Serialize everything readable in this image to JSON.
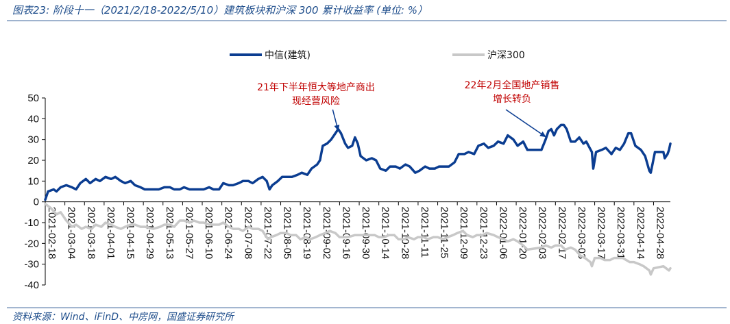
{
  "figure": {
    "title": "图表23:  阶段十一（2021/2/18-2022/5/10）建筑板块和沪深 300 累计收益率 (单位:    %）",
    "source": "资料来源：Wind、iFinD、中房网，国盛证券研究所"
  },
  "chart_data": {
    "type": "line",
    "title": "",
    "xlabel": "",
    "ylabel": "",
    "ylim": [
      -40,
      50
    ],
    "yticks": [
      -40,
      -30,
      -20,
      -10,
      0,
      10,
      20,
      30,
      40,
      50
    ],
    "grid": false,
    "legend_position": "top-center",
    "x_tick_labels": [
      "2021-02-18",
      "2021-03-04",
      "2021-03-18",
      "2021-04-01",
      "2021-04-15",
      "2021-04-29",
      "2021-05-13",
      "2021-05-27",
      "2021-06-10",
      "2021-06-24",
      "2021-07-08",
      "2021-07-22",
      "2021-08-05",
      "2021-08-19",
      "2021-09-02",
      "2021-09-16",
      "2021-09-30",
      "2021-10-14",
      "2021-10-28",
      "2021-11-11",
      "2021-11-25",
      "2021-12-09",
      "2021-12-23",
      "2022-01-06",
      "2022-01-20",
      "2022-02-03",
      "2022-02-17",
      "2022-03-03",
      "2022-03-17",
      "2022-03-31",
      "2022-04-14",
      "2022-04-28"
    ],
    "series": [
      {
        "name": "中信(建筑)",
        "color": "#0b3d91",
        "points": [
          [
            "2021-02-18",
            1
          ],
          [
            "2021-02-20",
            5
          ],
          [
            "2021-02-24",
            6
          ],
          [
            "2021-02-26",
            5
          ],
          [
            "2021-03-01",
            7
          ],
          [
            "2021-03-05",
            8
          ],
          [
            "2021-03-09",
            7
          ],
          [
            "2021-03-12",
            6
          ],
          [
            "2021-03-15",
            9
          ],
          [
            "2021-03-19",
            11
          ],
          [
            "2021-03-22",
            9
          ],
          [
            "2021-03-26",
            11
          ],
          [
            "2021-03-29",
            10
          ],
          [
            "2021-04-02",
            12
          ],
          [
            "2021-04-06",
            11
          ],
          [
            "2021-04-09",
            12
          ],
          [
            "2021-04-13",
            10
          ],
          [
            "2021-04-16",
            9
          ],
          [
            "2021-04-20",
            10
          ],
          [
            "2021-04-23",
            8
          ],
          [
            "2021-04-27",
            7
          ],
          [
            "2021-04-30",
            6
          ],
          [
            "2021-05-06",
            6
          ],
          [
            "2021-05-10",
            6
          ],
          [
            "2021-05-14",
            7
          ],
          [
            "2021-05-18",
            7
          ],
          [
            "2021-05-21",
            6
          ],
          [
            "2021-05-25",
            6
          ],
          [
            "2021-05-28",
            7
          ],
          [
            "2021-06-01",
            6
          ],
          [
            "2021-06-04",
            6
          ],
          [
            "2021-06-08",
            6
          ],
          [
            "2021-06-11",
            6
          ],
          [
            "2021-06-15",
            7
          ],
          [
            "2021-06-18",
            6
          ],
          [
            "2021-06-22",
            6
          ],
          [
            "2021-06-25",
            9
          ],
          [
            "2021-06-29",
            8
          ],
          [
            "2021-07-02",
            8
          ],
          [
            "2021-07-06",
            9
          ],
          [
            "2021-07-09",
            10
          ],
          [
            "2021-07-13",
            10
          ],
          [
            "2021-07-16",
            9
          ],
          [
            "2021-07-20",
            11
          ],
          [
            "2021-07-23",
            12
          ],
          [
            "2021-07-26",
            10
          ],
          [
            "2021-07-28",
            6
          ],
          [
            "2021-07-30",
            8
          ],
          [
            "2021-08-03",
            10
          ],
          [
            "2021-08-06",
            12
          ],
          [
            "2021-08-10",
            12
          ],
          [
            "2021-08-13",
            12
          ],
          [
            "2021-08-17",
            13
          ],
          [
            "2021-08-20",
            14
          ],
          [
            "2021-08-24",
            13
          ],
          [
            "2021-08-27",
            16
          ],
          [
            "2021-08-31",
            18
          ],
          [
            "2021-09-02",
            20
          ],
          [
            "2021-09-04",
            27
          ],
          [
            "2021-09-07",
            28
          ],
          [
            "2021-09-10",
            30
          ],
          [
            "2021-09-13",
            33
          ],
          [
            "2021-09-15",
            35
          ],
          [
            "2021-09-17",
            33
          ],
          [
            "2021-09-20",
            28
          ],
          [
            "2021-09-22",
            26
          ],
          [
            "2021-09-25",
            27
          ],
          [
            "2021-09-27",
            31
          ],
          [
            "2021-09-29",
            28
          ],
          [
            "2021-10-01",
            22
          ],
          [
            "2021-10-05",
            20
          ],
          [
            "2021-10-09",
            21
          ],
          [
            "2021-10-12",
            20
          ],
          [
            "2021-10-15",
            16
          ],
          [
            "2021-10-19",
            15
          ],
          [
            "2021-10-22",
            17
          ],
          [
            "2021-10-26",
            17
          ],
          [
            "2021-10-29",
            16
          ],
          [
            "2021-11-02",
            18
          ],
          [
            "2021-11-05",
            17
          ],
          [
            "2021-11-09",
            14
          ],
          [
            "2021-11-12",
            15
          ],
          [
            "2021-11-16",
            17
          ],
          [
            "2021-11-19",
            16
          ],
          [
            "2021-11-23",
            16
          ],
          [
            "2021-11-26",
            17
          ],
          [
            "2021-11-30",
            17
          ],
          [
            "2021-12-03",
            17
          ],
          [
            "2021-12-07",
            19
          ],
          [
            "2021-12-10",
            23
          ],
          [
            "2021-12-14",
            23
          ],
          [
            "2021-12-17",
            24
          ],
          [
            "2021-12-21",
            23
          ],
          [
            "2021-12-24",
            27
          ],
          [
            "2021-12-28",
            28
          ],
          [
            "2021-12-31",
            26
          ],
          [
            "2022-01-04",
            27
          ],
          [
            "2022-01-07",
            29
          ],
          [
            "2022-01-11",
            28
          ],
          [
            "2022-01-14",
            32
          ],
          [
            "2022-01-18",
            30
          ],
          [
            "2022-01-21",
            27
          ],
          [
            "2022-01-25",
            29
          ],
          [
            "2022-01-28",
            25
          ],
          [
            "2022-02-01",
            25
          ],
          [
            "2022-02-04",
            25
          ],
          [
            "2022-02-07",
            25
          ],
          [
            "2022-02-10",
            30
          ],
          [
            "2022-02-12",
            34
          ],
          [
            "2022-02-14",
            35
          ],
          [
            "2022-02-16",
            32
          ],
          [
            "2022-02-18",
            35
          ],
          [
            "2022-02-21",
            37
          ],
          [
            "2022-02-23",
            37
          ],
          [
            "2022-02-25",
            35
          ],
          [
            "2022-02-28",
            29
          ],
          [
            "2022-03-03",
            29
          ],
          [
            "2022-03-06",
            31
          ],
          [
            "2022-03-09",
            28
          ],
          [
            "2022-03-11",
            29
          ],
          [
            "2022-03-15",
            24
          ],
          [
            "2022-03-16",
            16
          ],
          [
            "2022-03-18",
            24
          ],
          [
            "2022-03-22",
            25
          ],
          [
            "2022-03-25",
            26
          ],
          [
            "2022-03-29",
            23
          ],
          [
            "2022-04-01",
            26
          ],
          [
            "2022-04-04",
            25
          ],
          [
            "2022-04-07",
            28
          ],
          [
            "2022-04-10",
            33
          ],
          [
            "2022-04-12",
            33
          ],
          [
            "2022-04-15",
            27
          ],
          [
            "2022-04-19",
            25
          ],
          [
            "2022-04-22",
            22
          ],
          [
            "2022-04-25",
            15
          ],
          [
            "2022-04-26",
            14
          ],
          [
            "2022-04-29",
            24
          ],
          [
            "2022-05-03",
            24
          ],
          [
            "2022-05-05",
            24
          ],
          [
            "2022-05-06",
            21
          ],
          [
            "2022-05-08",
            23
          ],
          [
            "2022-05-09",
            25
          ],
          [
            "2022-05-10",
            28
          ]
        ]
      },
      {
        "name": "沪深300",
        "color": "#c8c8c8",
        "points": [
          [
            "2021-02-18",
            -1
          ],
          [
            "2021-02-22",
            -3
          ],
          [
            "2021-02-26",
            -6
          ],
          [
            "2021-03-01",
            -5
          ],
          [
            "2021-03-05",
            -9
          ],
          [
            "2021-03-09",
            -12
          ],
          [
            "2021-03-12",
            -11
          ],
          [
            "2021-03-16",
            -13
          ],
          [
            "2021-03-19",
            -12
          ],
          [
            "2021-03-23",
            -13
          ],
          [
            "2021-03-26",
            -11
          ],
          [
            "2021-03-30",
            -12
          ],
          [
            "2021-04-02",
            -10
          ],
          [
            "2021-04-06",
            -11
          ],
          [
            "2021-04-09",
            -12
          ],
          [
            "2021-04-13",
            -13
          ],
          [
            "2021-04-16",
            -12
          ],
          [
            "2021-04-20",
            -11
          ],
          [
            "2021-04-23",
            -11
          ],
          [
            "2021-04-27",
            -12
          ],
          [
            "2021-04-30",
            -12
          ],
          [
            "2021-05-06",
            -13
          ],
          [
            "2021-05-11",
            -12
          ],
          [
            "2021-05-14",
            -11
          ],
          [
            "2021-05-18",
            -11
          ],
          [
            "2021-05-21",
            -12
          ],
          [
            "2021-05-25",
            -9
          ],
          [
            "2021-05-28",
            -9
          ],
          [
            "2021-06-01",
            -10
          ],
          [
            "2021-06-04",
            -9
          ],
          [
            "2021-06-08",
            -10
          ],
          [
            "2021-06-11",
            -10
          ],
          [
            "2021-06-15",
            -11
          ],
          [
            "2021-06-18",
            -11
          ],
          [
            "2021-06-22",
            -11
          ],
          [
            "2021-06-25",
            -10
          ],
          [
            "2021-06-29",
            -12
          ],
          [
            "2021-07-02",
            -13
          ],
          [
            "2021-07-06",
            -13
          ],
          [
            "2021-07-09",
            -14
          ],
          [
            "2021-07-13",
            -12
          ],
          [
            "2021-07-16",
            -13
          ],
          [
            "2021-07-20",
            -13
          ],
          [
            "2021-07-23",
            -14
          ],
          [
            "2021-07-27",
            -18
          ],
          [
            "2021-07-29",
            -17
          ],
          [
            "2021-08-02",
            -16
          ],
          [
            "2021-08-05",
            -15
          ],
          [
            "2021-08-09",
            -15
          ],
          [
            "2021-08-12",
            -16
          ],
          [
            "2021-08-16",
            -16
          ],
          [
            "2021-08-19",
            -18
          ],
          [
            "2021-08-23",
            -17
          ],
          [
            "2021-08-26",
            -18
          ],
          [
            "2021-08-30",
            -17
          ],
          [
            "2021-09-02",
            -16
          ],
          [
            "2021-09-06",
            -15
          ],
          [
            "2021-09-09",
            -14
          ],
          [
            "2021-09-13",
            -15
          ],
          [
            "2021-09-16",
            -17
          ],
          [
            "2021-09-22",
            -17
          ],
          [
            "2021-09-27",
            -16
          ],
          [
            "2021-09-30",
            -16
          ],
          [
            "2021-10-11",
            -16
          ],
          [
            "2021-10-14",
            -17
          ],
          [
            "2021-10-18",
            -17
          ],
          [
            "2021-10-21",
            -16
          ],
          [
            "2021-10-25",
            -16
          ],
          [
            "2021-10-28",
            -18
          ],
          [
            "2021-11-01",
            -18
          ],
          [
            "2021-11-04",
            -17
          ],
          [
            "2021-11-08",
            -18
          ],
          [
            "2021-11-11",
            -17
          ],
          [
            "2021-11-15",
            -17
          ],
          [
            "2021-11-18",
            -18
          ],
          [
            "2021-11-22",
            -17
          ],
          [
            "2021-11-25",
            -17
          ],
          [
            "2021-11-29",
            -18
          ],
          [
            "2021-12-02",
            -17
          ],
          [
            "2021-12-06",
            -16
          ],
          [
            "2021-12-09",
            -15
          ],
          [
            "2021-12-13",
            -14
          ],
          [
            "2021-12-16",
            -16
          ],
          [
            "2021-12-20",
            -17
          ],
          [
            "2021-12-23",
            -16
          ],
          [
            "2021-12-27",
            -16
          ],
          [
            "2021-12-30",
            -15
          ],
          [
            "2022-01-04",
            -16
          ],
          [
            "2022-01-07",
            -17
          ],
          [
            "2022-01-11",
            -18
          ],
          [
            "2022-01-14",
            -19
          ],
          [
            "2022-01-18",
            -18
          ],
          [
            "2022-01-21",
            -19
          ],
          [
            "2022-01-25",
            -21
          ],
          [
            "2022-01-28",
            -23
          ],
          [
            "2022-02-07",
            -22
          ],
          [
            "2022-02-10",
            -21
          ],
          [
            "2022-02-14",
            -22
          ],
          [
            "2022-02-17",
            -21
          ],
          [
            "2022-02-21",
            -21
          ],
          [
            "2022-02-24",
            -23
          ],
          [
            "2022-02-28",
            -22
          ],
          [
            "2022-03-03",
            -23
          ],
          [
            "2022-03-07",
            -26
          ],
          [
            "2022-03-10",
            -27
          ],
          [
            "2022-03-14",
            -29
          ],
          [
            "2022-03-15",
            -31
          ],
          [
            "2022-03-17",
            -27
          ],
          [
            "2022-03-21",
            -27
          ],
          [
            "2022-03-24",
            -28
          ],
          [
            "2022-03-28",
            -28
          ],
          [
            "2022-03-31",
            -27
          ],
          [
            "2022-04-06",
            -27
          ],
          [
            "2022-04-11",
            -29
          ],
          [
            "2022-04-14",
            -29
          ],
          [
            "2022-04-18",
            -30
          ],
          [
            "2022-04-21",
            -31
          ],
          [
            "2022-04-25",
            -33
          ],
          [
            "2022-04-26",
            -35
          ],
          [
            "2022-04-28",
            -32
          ],
          [
            "2022-05-05",
            -31
          ],
          [
            "2022-05-09",
            -33
          ],
          [
            "2022-05-10",
            -32
          ]
        ]
      }
    ],
    "annotations": [
      {
        "lines": [
          "21年下半年恒大等地产商出",
          "现经营风险"
        ],
        "color": "#c00000",
        "arrow_to": [
          "2021-09-15",
          33
        ]
      },
      {
        "lines": [
          "22年2月全国地产销售",
          "增长转负"
        ],
        "color": "#c00000",
        "arrow_to": [
          "2022-02-10",
          30
        ]
      }
    ]
  }
}
